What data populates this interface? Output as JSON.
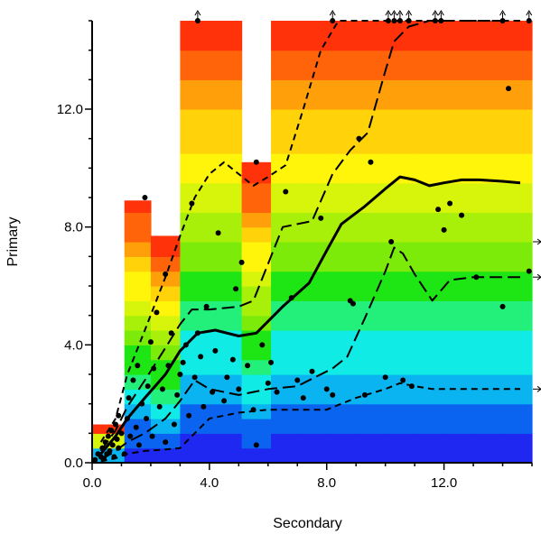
{
  "chart_data": {
    "type": "heatmap",
    "title": "",
    "xlabel": "Secondary",
    "ylabel": "Primary",
    "xlim": [
      0,
      15
    ],
    "ylim": [
      0,
      15
    ],
    "x_ticks": [
      {
        "value": 0,
        "label": "0.0"
      },
      {
        "value": 4,
        "label": "4.0"
      },
      {
        "value": 8,
        "label": "8.0"
      },
      {
        "value": 12,
        "label": "12.0"
      }
    ],
    "y_ticks": [
      {
        "value": 0,
        "label": "0.0"
      },
      {
        "value": 4,
        "label": "4.0"
      },
      {
        "value": 8,
        "label": "8.0"
      },
      {
        "value": 12,
        "label": "12.0"
      }
    ],
    "columns": [
      {
        "x0": 0.0,
        "x1": 0.6,
        "ymax": 1.3
      },
      {
        "x0": 0.6,
        "x1": 1.1,
        "ymax": 1.3
      },
      {
        "x0": 1.1,
        "x1": 2.0,
        "ymax": 8.9
      },
      {
        "x0": 2.0,
        "x1": 3.0,
        "ymax": 7.7
      },
      {
        "x0": 3.0,
        "x1": 5.1,
        "ymax": 15.0
      },
      {
        "x0": 5.1,
        "x1": 6.1,
        "ymax": 10.2
      },
      {
        "x0": 6.1,
        "x1": 7.1,
        "ymax": 15.0
      },
      {
        "x0": 7.1,
        "x1": 8.0,
        "ymax": 15.0
      },
      {
        "x0": 8.0,
        "x1": 9.0,
        "ymax": 15.0
      },
      {
        "x0": 9.0,
        "x1": 10.0,
        "ymax": 15.0
      },
      {
        "x0": 10.0,
        "x1": 11.0,
        "ymax": 15.0
      },
      {
        "x0": 11.0,
        "x1": 12.0,
        "ymax": 15.0
      },
      {
        "x0": 12.0,
        "x1": 13.0,
        "ymax": 15.0
      },
      {
        "x0": 13.0,
        "x1": 14.0,
        "ymax": 15.0
      },
      {
        "x0": 14.0,
        "x1": 15.0,
        "ymax": 15.0
      }
    ],
    "series": [
      {
        "style": "solid",
        "x": [
          0.3,
          0.8,
          1.2,
          1.8,
          2.5,
          3.0,
          3.6,
          4.2,
          5.0,
          5.6,
          6.5,
          7.4,
          8.0,
          8.5,
          9.3,
          10.0,
          10.5,
          11.0,
          11.5,
          12.0,
          12.6,
          13.2,
          14.0,
          14.6
        ],
        "y": [
          0.3,
          0.9,
          1.5,
          2.2,
          3.0,
          3.8,
          4.4,
          4.5,
          4.3,
          4.4,
          5.3,
          6.1,
          7.2,
          8.1,
          8.7,
          9.3,
          9.7,
          9.6,
          9.4,
          9.5,
          9.6,
          9.6,
          9.55,
          9.5
        ]
      },
      {
        "style": "long-dash",
        "x": [
          0.3,
          0.8,
          1.2,
          1.8,
          2.5,
          3.0,
          3.4,
          4.0,
          5.0,
          5.5,
          6.5,
          7.5,
          8.2,
          8.8,
          9.4,
          10.0,
          10.3,
          10.8,
          11.5,
          12.0,
          13.0,
          14.0,
          14.6
        ],
        "y": [
          0.4,
          1.1,
          1.9,
          2.8,
          3.9,
          4.7,
          5.2,
          5.2,
          5.3,
          5.5,
          8.0,
          8.2,
          9.8,
          10.6,
          11.2,
          13.3,
          14.3,
          14.8,
          15.0,
          15.0,
          15.0,
          15.0,
          15.0
        ]
      },
      {
        "style": "long-dash",
        "x": [
          0.3,
          0.8,
          1.2,
          1.8,
          2.5,
          3.0,
          3.5,
          4.0,
          5.0,
          6.0,
          7.0,
          7.6,
          8.2,
          8.7,
          9.3,
          10.0,
          10.3,
          10.6,
          11.0,
          11.6,
          12.2,
          13.0,
          14.0,
          14.6
        ],
        "y": [
          0.1,
          0.4,
          0.7,
          1.0,
          1.5,
          2.1,
          2.8,
          2.5,
          2.3,
          2.5,
          2.6,
          2.9,
          3.2,
          3.6,
          4.9,
          6.5,
          7.3,
          7.1,
          6.4,
          5.5,
          6.2,
          6.3,
          6.3,
          6.3
        ]
      },
      {
        "style": "short-dash",
        "x": [
          0.3,
          0.8,
          1.2,
          1.8,
          2.5,
          3.0,
          3.5,
          4.0,
          4.5,
          5.0,
          5.5,
          6.0,
          6.6,
          7.2,
          7.8,
          8.4,
          9.0,
          9.6,
          10.2,
          14.6
        ],
        "y": [
          0.7,
          1.5,
          3.0,
          4.5,
          6.3,
          7.7,
          9.0,
          9.8,
          10.2,
          9.8,
          9.4,
          9.7,
          10.1,
          12.0,
          14.0,
          15.0,
          15.0,
          15.0,
          15.0,
          15.0
        ]
      },
      {
        "style": "short-dash",
        "x": [
          0.3,
          0.8,
          1.2,
          1.8,
          2.5,
          3.0,
          3.5,
          4.0,
          5.0,
          6.0,
          7.0,
          8.0,
          9.0,
          10.0,
          10.5,
          11.0,
          11.6,
          12.5,
          13.5,
          14.6
        ],
        "y": [
          0.05,
          0.15,
          0.3,
          0.4,
          0.45,
          0.5,
          1.0,
          1.5,
          1.7,
          1.8,
          1.8,
          1.8,
          2.2,
          2.5,
          2.7,
          2.6,
          2.5,
          2.5,
          2.5,
          2.5
        ]
      }
    ],
    "points": [
      [
        0.1,
        0.1
      ],
      [
        0.2,
        0.3
      ],
      [
        0.3,
        0.2
      ],
      [
        0.35,
        0.5
      ],
      [
        0.4,
        0.15
      ],
      [
        0.45,
        0.7
      ],
      [
        0.5,
        0.3
      ],
      [
        0.55,
        0.9
      ],
      [
        0.6,
        0.4
      ],
      [
        0.65,
        1.1
      ],
      [
        0.7,
        0.6
      ],
      [
        0.75,
        0.2
      ],
      [
        0.8,
        1.3
      ],
      [
        0.85,
        0.8
      ],
      [
        0.9,
        0.5
      ],
      [
        1.0,
        1.0
      ],
      [
        0.9,
        1.6
      ],
      [
        1.1,
        0.3
      ],
      [
        1.2,
        1.5
      ],
      [
        1.25,
        2.2
      ],
      [
        1.3,
        0.9
      ],
      [
        1.4,
        2.8
      ],
      [
        1.5,
        1.2
      ],
      [
        1.55,
        3.3
      ],
      [
        1.6,
        0.6
      ],
      [
        1.7,
        2.0
      ],
      [
        1.8,
        9.0
      ],
      [
        1.85,
        1.5
      ],
      [
        1.9,
        2.6
      ],
      [
        2.0,
        4.1
      ],
      [
        2.05,
        0.9
      ],
      [
        2.1,
        3.2
      ],
      [
        2.2,
        5.1
      ],
      [
        2.3,
        1.9
      ],
      [
        2.4,
        2.5
      ],
      [
        2.5,
        0.7
      ],
      [
        2.5,
        6.4
      ],
      [
        2.6,
        3.3
      ],
      [
        2.7,
        4.4
      ],
      [
        2.8,
        1.3
      ],
      [
        2.9,
        2.3
      ],
      [
        3.0,
        3.0
      ],
      [
        3.1,
        3.4
      ],
      [
        3.2,
        4.0
      ],
      [
        3.3,
        1.6
      ],
      [
        3.4,
        8.8
      ],
      [
        3.5,
        2.9
      ],
      [
        3.6,
        4.4
      ],
      [
        3.7,
        3.6
      ],
      [
        3.8,
        1.9
      ],
      [
        3.9,
        5.3
      ],
      [
        4.1,
        2.4
      ],
      [
        4.2,
        3.8
      ],
      [
        4.3,
        7.8
      ],
      [
        4.5,
        2.1
      ],
      [
        4.6,
        2.9
      ],
      [
        4.8,
        3.5
      ],
      [
        4.9,
        5.9
      ],
      [
        5.0,
        2.5
      ],
      [
        5.1,
        6.8
      ],
      [
        5.3,
        3.3
      ],
      [
        5.5,
        1.8
      ],
      [
        5.6,
        0.6
      ],
      [
        5.6,
        10.2
      ],
      [
        5.8,
        4.0
      ],
      [
        6.0,
        2.7
      ],
      [
        6.1,
        3.4
      ],
      [
        6.3,
        2.4
      ],
      [
        6.6,
        9.2
      ],
      [
        6.8,
        5.6
      ],
      [
        7.0,
        2.8
      ],
      [
        7.2,
        2.2
      ],
      [
        7.5,
        3.1
      ],
      [
        7.8,
        8.3
      ],
      [
        8.0,
        2.5
      ],
      [
        8.2,
        2.3
      ],
      [
        8.8,
        5.5
      ],
      [
        8.9,
        5.4
      ],
      [
        9.1,
        11.0
      ],
      [
        9.3,
        2.3
      ],
      [
        9.5,
        10.2
      ],
      [
        10.0,
        2.9
      ],
      [
        10.2,
        7.5
      ],
      [
        10.6,
        2.8
      ],
      [
        10.9,
        2.6
      ],
      [
        11.8,
        8.6
      ],
      [
        12.0,
        7.9
      ],
      [
        12.2,
        8.8
      ],
      [
        12.6,
        8.4
      ],
      [
        13.1,
        6.3
      ],
      [
        14.0,
        5.3
      ],
      [
        14.2,
        12.7
      ],
      [
        14.9,
        6.5
      ],
      [
        3.6,
        15.0
      ],
      [
        8.2,
        15.0
      ],
      [
        10.1,
        15.0
      ],
      [
        10.3,
        15.0
      ],
      [
        10.5,
        15.0
      ],
      [
        10.8,
        15.0
      ],
      [
        11.7,
        15.0
      ],
      [
        11.9,
        15.0
      ],
      [
        14.0,
        15.0
      ],
      [
        14.9,
        15.0
      ]
    ],
    "offscale_top_x": [
      3.6,
      8.2,
      10.1,
      10.3,
      10.5,
      10.8,
      11.7,
      11.9,
      14.0,
      14.9
    ],
    "offscale_right_y": [
      7.5,
      6.3,
      2.5
    ],
    "grid": false,
    "legend": "none"
  }
}
